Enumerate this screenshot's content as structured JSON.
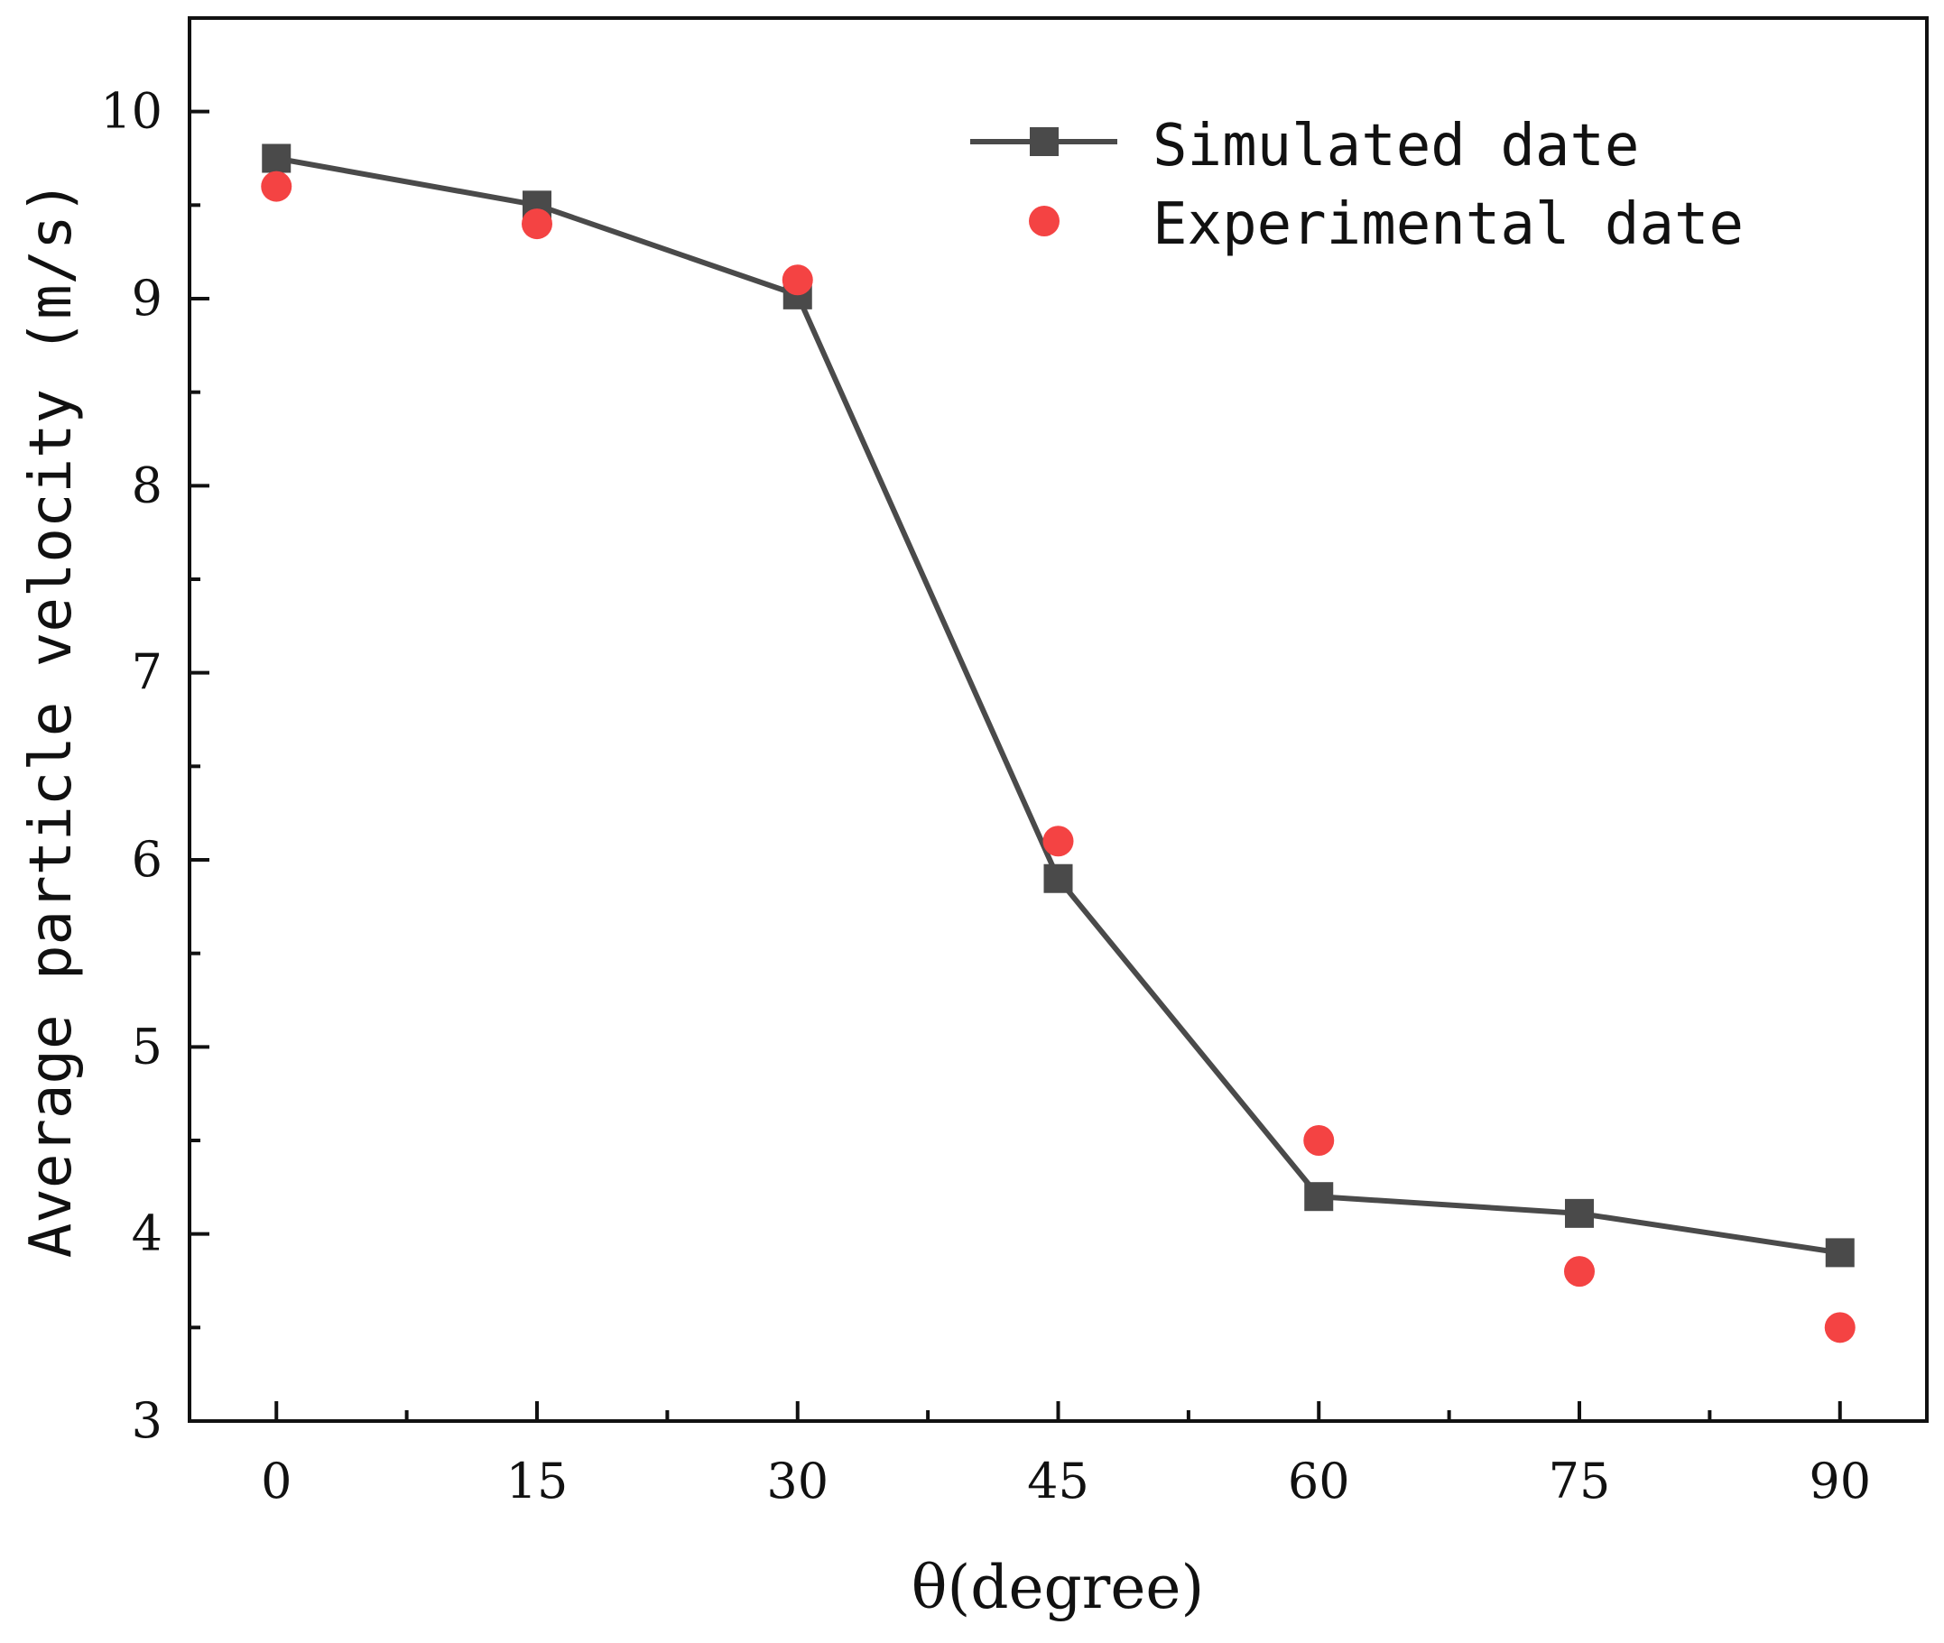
{
  "chart_data": {
    "type": "line",
    "title": "",
    "xlabel": "θ(degree)",
    "ylabel": "Average particle velocity (m/s)",
    "x": [
      0,
      15,
      30,
      45,
      60,
      75,
      90
    ],
    "xlim": [
      -5,
      95
    ],
    "ylim": [
      3,
      10.5
    ],
    "xticks": [
      0,
      15,
      30,
      45,
      60,
      75,
      90
    ],
    "xtick_labels": [
      "0",
      "15",
      "30",
      "45",
      "60",
      "75",
      "90"
    ],
    "yticks": [
      3,
      4,
      5,
      6,
      7,
      8,
      9,
      10
    ],
    "ytick_labels": [
      "3",
      "4",
      "5",
      "6",
      "7",
      "8",
      "9",
      "10"
    ],
    "grid": false,
    "legend_position": "top-right",
    "series": [
      {
        "name": "Simulated date",
        "marker": "square",
        "line": true,
        "color": "#4a4a4a",
        "values": [
          9.75,
          9.5,
          9.02,
          5.9,
          4.2,
          4.11,
          3.9
        ]
      },
      {
        "name": "Experimental date",
        "marker": "circle",
        "line": false,
        "color": "#f44343",
        "values": [
          9.6,
          9.4,
          9.1,
          6.1,
          4.5,
          3.8,
          3.5
        ]
      }
    ]
  }
}
